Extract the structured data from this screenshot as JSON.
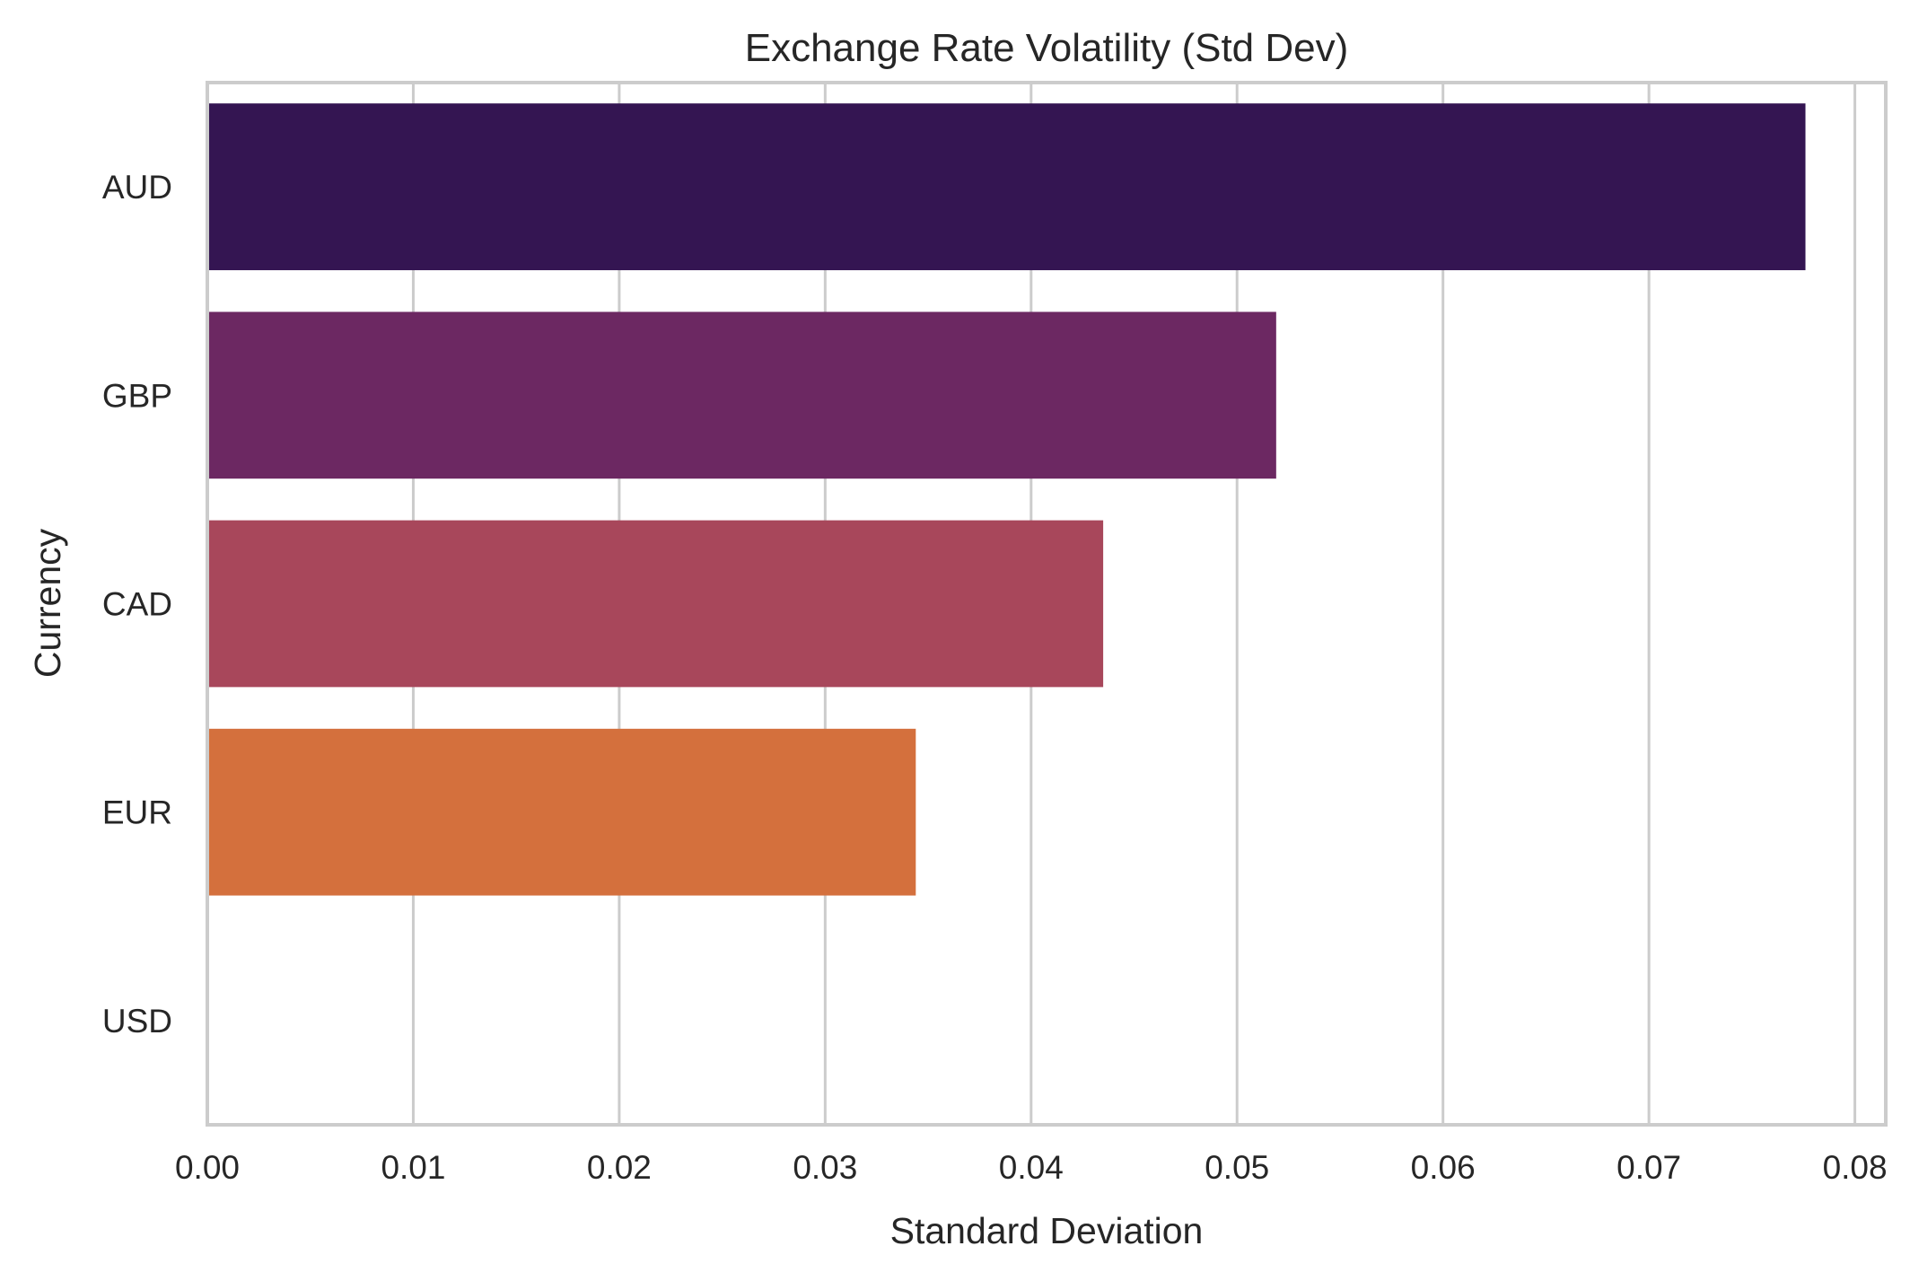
{
  "chart_data": {
    "type": "bar",
    "orientation": "horizontal",
    "title": "Exchange Rate Volatility (Std Dev)",
    "xlabel": "Standard Deviation",
    "ylabel": "Currency",
    "categories": [
      "AUD",
      "GBP",
      "CAD",
      "EUR",
      "USD"
    ],
    "values": [
      0.0776,
      0.0519,
      0.0435,
      0.0344,
      0.0
    ],
    "colors": [
      "#341552",
      "#6c2862",
      "#a8475b",
      "#d4703d",
      "#f5c243"
    ],
    "xlim": [
      0,
      0.0815
    ],
    "xticks": [
      "0.00",
      "0.01",
      "0.02",
      "0.03",
      "0.04",
      "0.05",
      "0.06",
      "0.07",
      "0.08"
    ],
    "xtick_values": [
      0,
      0.01,
      0.02,
      0.03,
      0.04,
      0.05,
      0.06,
      0.07,
      0.08
    ],
    "grid": true,
    "frame_color": "#cccccc",
    "grid_color": "#cccccc"
  }
}
